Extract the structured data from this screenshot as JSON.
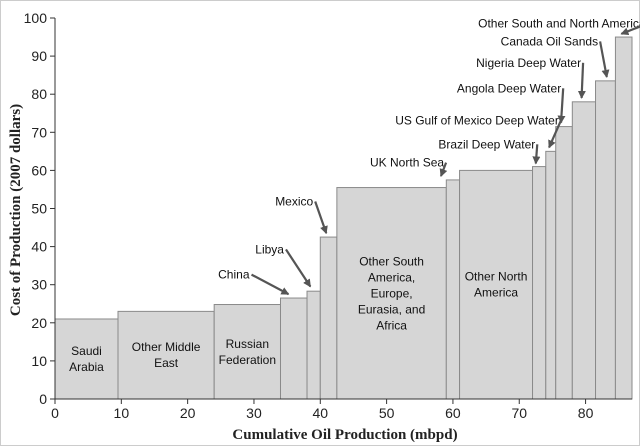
{
  "chart_data": {
    "type": "bar",
    "subtype": "variable-width step (cost curve)",
    "title": "",
    "xlabel": "Cumulative Oil Production (mbpd)",
    "ylabel": "Cost of Production (2007 dollars)",
    "xlim": [
      0,
      87
    ],
    "ylim": [
      0,
      100
    ],
    "xticks": [
      0,
      10,
      20,
      30,
      40,
      50,
      60,
      70,
      80
    ],
    "yticks": [
      0,
      10,
      20,
      30,
      40,
      50,
      60,
      70,
      80,
      90,
      100
    ],
    "grid": false,
    "colors": {
      "bar_fill": "#d6d6d6",
      "bar_stroke": "#8a8a8a",
      "axis": "#333333",
      "arrow": "#555555"
    },
    "segments": [
      {
        "x0": 0,
        "x1": 9.5,
        "value": 21,
        "label": [
          "Saudi",
          "Arabia"
        ]
      },
      {
        "x0": 9.5,
        "x1": 24,
        "value": 23,
        "label": [
          "Other Middle",
          "East"
        ]
      },
      {
        "x0": 24,
        "x1": 34,
        "value": 24.8,
        "label": [
          "Russian",
          "Federation"
        ]
      },
      {
        "x0": 34,
        "x1": 38,
        "value": 26.5,
        "label": []
      },
      {
        "x0": 38,
        "x1": 40,
        "value": 28.3,
        "label": []
      },
      {
        "x0": 40,
        "x1": 42.5,
        "value": 42.5,
        "label": []
      },
      {
        "x0": 42.5,
        "x1": 59,
        "value": 55.5,
        "label": [
          "Other South",
          "America,",
          "Europe,",
          "Eurasia, and",
          "Africa"
        ]
      },
      {
        "x0": 59,
        "x1": 61,
        "value": 57.5,
        "label": []
      },
      {
        "x0": 61,
        "x1": 72,
        "value": 60,
        "label": [
          "Other North",
          "America"
        ]
      },
      {
        "x0": 72,
        "x1": 74,
        "value": 61,
        "label": []
      },
      {
        "x0": 74,
        "x1": 75.5,
        "value": 65,
        "label": []
      },
      {
        "x0": 75.5,
        "x1": 78,
        "value": 71.5,
        "label": []
      },
      {
        "x0": 78,
        "x1": 81.5,
        "value": 78,
        "label": []
      },
      {
        "x0": 81.5,
        "x1": 84.5,
        "value": 83.5,
        "label": []
      },
      {
        "x0": 84.5,
        "x1": 87,
        "value": 95,
        "label": []
      }
    ],
    "annotations": [
      {
        "text": "China",
        "text_x": 24.6,
        "text_y": 31.6,
        "point": [
          35.5,
          27
        ]
      },
      {
        "text": "Libya",
        "text_x": 30.2,
        "text_y": 38.2,
        "point": [
          38.8,
          29
        ]
      },
      {
        "text": "Mexico",
        "text_x": 33.2,
        "text_y": 50.8,
        "point": [
          41.2,
          43
        ]
      },
      {
        "text": "UK North Sea",
        "text_x": 47.5,
        "text_y": 61.0,
        "point": [
          58.5,
          58
        ]
      },
      {
        "text": "Brazil Deep Water",
        "text_x": 57.8,
        "text_y": 65.8,
        "point": [
          72.8,
          61.3
        ]
      },
      {
        "text": "US Gulf of Mexico Deep Water",
        "text_x": 51.3,
        "text_y": 72.0,
        "point": [
          74.8,
          65.5
        ]
      },
      {
        "text": "Angola Deep Water",
        "text_x": 60.6,
        "text_y": 80.5,
        "point": [
          76.6,
          72
        ]
      },
      {
        "text": "Nigeria Deep Water",
        "text_x": 63.5,
        "text_y": 87.2,
        "point": [
          79.7,
          78.5
        ]
      },
      {
        "text": "Canada Oil Sands",
        "text_x": 67.2,
        "text_y": 92.8,
        "point": [
          83.5,
          84
        ]
      },
      {
        "text": "Other South and North America",
        "text_x": 63.8,
        "text_y": 97.5,
        "point": [
          85.7,
          95.3
        ]
      }
    ]
  }
}
